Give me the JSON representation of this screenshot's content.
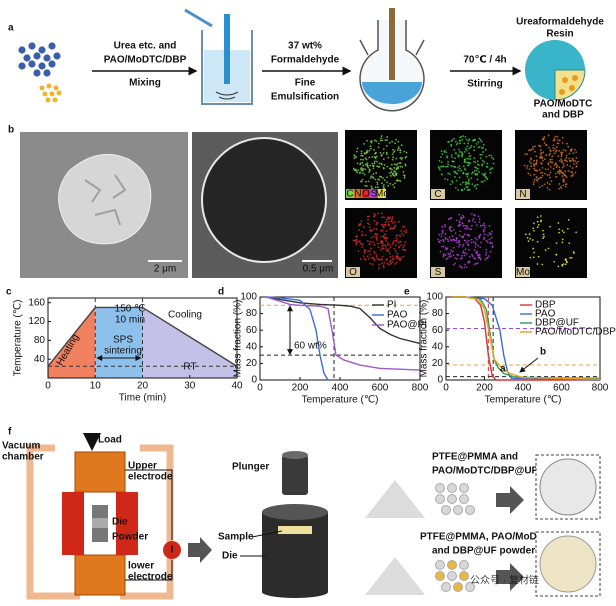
{
  "panel_a": {
    "label": "a",
    "step1": [
      "Urea etc. and",
      "PAO/MoDTC/DBP",
      "Mixing"
    ],
    "step2": [
      "37 wt%",
      "Formaldehyde",
      "Fine",
      "Emulsification"
    ],
    "step3": [
      "70℃ / 4h",
      "Stirring"
    ],
    "shell": [
      "Ureaformaldehyde",
      "Resin"
    ],
    "core": [
      "PAO/MoDTC",
      "and DBP"
    ]
  },
  "panel_b": {
    "label": "b",
    "scale_bars": [
      "2 μm",
      "0.5 μm"
    ],
    "composite": [
      "C",
      "N",
      "O",
      "S",
      "Mo"
    ],
    "maps": [
      "C",
      "N",
      "O",
      "S",
      "Mo"
    ]
  },
  "chart_data": [
    {
      "label": "c",
      "type": "line",
      "xlabel": "Time (min)",
      "ylabel": "Temperature (℃)",
      "x": [
        0,
        10,
        20,
        40
      ],
      "series": [
        {
          "color": "#444444",
          "values": [
            25,
            150,
            150,
            25
          ]
        }
      ],
      "region_colors": [
        "#f08060",
        "#8ec0ec",
        "#c4c0e8"
      ],
      "xlim": [
        0,
        40
      ],
      "xticks": [
        0,
        10,
        20,
        30,
        40
      ],
      "ylim": [
        0,
        170
      ],
      "yticks": [
        40,
        80,
        120,
        160
      ],
      "vlines": [
        {
          "value": 10,
          "color": "#333333"
        },
        {
          "value": 20,
          "color": "#333333"
        }
      ],
      "hlines": [
        {
          "value": 25,
          "color": "#333333"
        }
      ],
      "annotations": [
        "Heating",
        "150 ℃",
        "10 min",
        "SPS",
        "sintering",
        "Cooling",
        "RT"
      ]
    },
    {
      "label": "d",
      "type": "line",
      "xlabel": "Temperature (℃)",
      "ylabel": "Mass fraction (%)",
      "legend": "upper right",
      "series": [
        {
          "name": "PI",
          "color": "#333333",
          "x": [
            30,
            100,
            200,
            300,
            400,
            450,
            500,
            550,
            600,
            650,
            700,
            800
          ],
          "values": [
            100,
            97,
            93,
            91,
            90,
            89,
            86,
            75,
            62,
            55,
            50,
            44
          ]
        },
        {
          "name": "PAO",
          "color": "#3a6fd8",
          "x": [
            30,
            100,
            200,
            250,
            280,
            300,
            320,
            340
          ],
          "values": [
            100,
            99,
            96,
            85,
            60,
            30,
            8,
            0
          ]
        },
        {
          "name": "PAO@PI",
          "color": "#9b59d0",
          "x": [
            30,
            100,
            150,
            200,
            300,
            340,
            360,
            380,
            420,
            500,
            600,
            800
          ],
          "values": [
            100,
            95,
            91,
            90,
            89,
            86,
            60,
            30,
            24,
            18,
            14,
            12
          ]
        }
      ],
      "xlim": [
        0,
        800
      ],
      "xticks": [
        0,
        200,
        400,
        600,
        800
      ],
      "ylim": [
        0,
        100
      ],
      "yticks": [
        0,
        20,
        40,
        60,
        80,
        100
      ],
      "vlines": [
        {
          "value": 370,
          "color": "#222222"
        }
      ],
      "hlines": [
        {
          "value": 90,
          "color": "#f0a040"
        },
        {
          "value": 30,
          "color": "#222222"
        }
      ],
      "annotations": [
        "60 wt%"
      ]
    },
    {
      "label": "e",
      "type": "line",
      "xlabel": "Temperature (℃)",
      "ylabel": "Mass fraction (%)",
      "legend": "upper right",
      "series": [
        {
          "name": "DBP",
          "color": "#e03030",
          "x": [
            30,
            100,
            150,
            180,
            200,
            220,
            240,
            260,
            800
          ],
          "values": [
            100,
            100,
            98,
            90,
            70,
            30,
            5,
            0,
            0
          ]
        },
        {
          "name": "PAO",
          "color": "#3a6fd8",
          "x": [
            30,
            100,
            200,
            240,
            280,
            300,
            320,
            340,
            800
          ],
          "values": [
            100,
            100,
            98,
            90,
            60,
            30,
            10,
            2,
            0
          ]
        },
        {
          "name": "DBP@UF",
          "color": "#2aa050",
          "x": [
            30,
            100,
            180,
            210,
            230,
            250,
            270,
            300,
            350,
            400,
            800
          ],
          "values": [
            100,
            100,
            97,
            85,
            55,
            25,
            15,
            8,
            4,
            3,
            2
          ]
        },
        {
          "name": "PAO/MoDTC/DBP@UF",
          "color": "#e8a020",
          "x": [
            30,
            100,
            170,
            200,
            230,
            250,
            280,
            330,
            400,
            800
          ],
          "values": [
            100,
            100,
            97,
            85,
            50,
            25,
            17,
            8,
            3,
            1
          ]
        }
      ],
      "xlim": [
        0,
        800
      ],
      "xticks": [
        0,
        200,
        400,
        600,
        800
      ],
      "ylim": [
        0,
        100
      ],
      "yticks": [
        0,
        20,
        40,
        60,
        80,
        100
      ],
      "vlines": [
        {
          "value": 220,
          "color": "#e03030"
        },
        {
          "value": 245,
          "color": "#222222"
        }
      ],
      "hlines": [
        {
          "value": 62,
          "color": "#9b4bd6"
        },
        {
          "value": 18,
          "color": "#f0a040"
        },
        {
          "value": 4,
          "color": "#222222"
        }
      ],
      "annotations": [
        "a",
        "b"
      ]
    }
  ],
  "panel_f": {
    "label": "f",
    "chamber": [
      "Vacuum",
      "chamber"
    ],
    "load": "Load",
    "upper": [
      "Upper",
      "electrode"
    ],
    "die": "Die",
    "powder": "Powder",
    "lower": [
      "lower",
      "electrode"
    ],
    "current": "I",
    "plunger": "Plunger",
    "sample": "Sample",
    "die2": "Die",
    "mix1": [
      "PTFE@PMMA and",
      "PAO/MoDTC/DBP@UF powders"
    ],
    "mix2": [
      "PTFE@PMMA, PAO/MoDTC@PI",
      "and DBP@UF powders"
    ],
    "watermark": "公众号 · 复材链"
  }
}
